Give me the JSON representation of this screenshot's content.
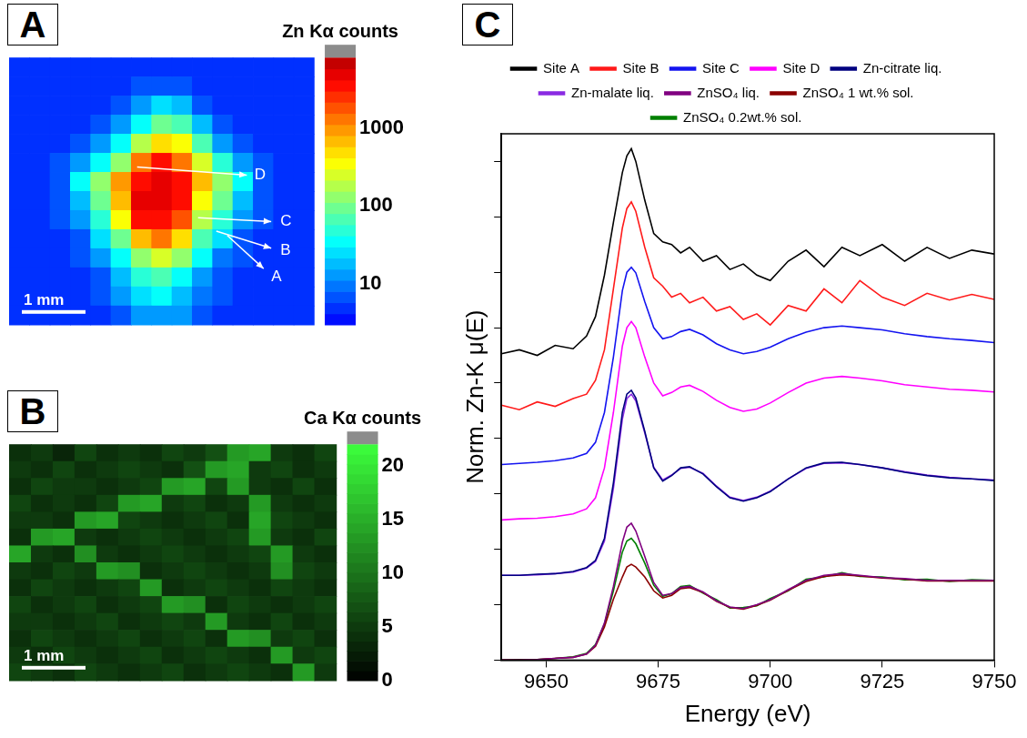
{
  "chart_data": [
    {
      "type": "heatmap",
      "panel_label": "A",
      "scale_bar": "1 mm",
      "annotations": [
        "D",
        "C",
        "B",
        "A"
      ],
      "colorbar": {
        "title": "Zn Kα counts",
        "log": true,
        "range": [
          3,
          8000
        ],
        "ticks": [
          10,
          100,
          1000
        ]
      },
      "cells": [
        [
          5,
          5,
          5,
          5,
          5,
          5,
          5,
          5,
          5,
          5,
          5,
          5,
          5,
          5,
          5
        ],
        [
          5,
          5,
          5,
          5,
          5,
          5,
          6,
          8,
          7,
          5,
          5,
          5,
          5,
          5,
          5
        ],
        [
          5,
          5,
          5,
          5,
          5,
          7,
          15,
          25,
          18,
          8,
          5,
          5,
          5,
          5,
          5
        ],
        [
          5,
          5,
          5,
          5,
          6,
          15,
          40,
          90,
          60,
          20,
          7,
          5,
          5,
          5,
          5
        ],
        [
          5,
          5,
          5,
          6,
          12,
          40,
          200,
          500,
          300,
          60,
          15,
          6,
          5,
          5,
          5
        ],
        [
          5,
          5,
          6,
          12,
          40,
          150,
          1500,
          3000,
          1500,
          250,
          50,
          12,
          6,
          5,
          5
        ],
        [
          5,
          5,
          8,
          30,
          120,
          900,
          4000,
          5000,
          3500,
          600,
          120,
          30,
          8,
          5,
          5
        ],
        [
          5,
          5,
          7,
          20,
          90,
          700,
          4500,
          5000,
          3000,
          400,
          90,
          20,
          7,
          5,
          5
        ],
        [
          5,
          5,
          6,
          12,
          50,
          300,
          3000,
          4000,
          1800,
          200,
          50,
          12,
          6,
          5,
          5
        ],
        [
          5,
          5,
          5,
          8,
          25,
          100,
          700,
          1200,
          500,
          80,
          25,
          8,
          5,
          5,
          5
        ],
        [
          5,
          5,
          5,
          6,
          12,
          40,
          150,
          250,
          120,
          30,
          10,
          6,
          5,
          5,
          5
        ],
        [
          5,
          5,
          5,
          5,
          8,
          20,
          50,
          70,
          40,
          15,
          7,
          5,
          5,
          5,
          5
        ],
        [
          5,
          5,
          5,
          5,
          6,
          12,
          25,
          30,
          20,
          10,
          6,
          5,
          5,
          5,
          5
        ],
        [
          5,
          5,
          5,
          5,
          5,
          8,
          15,
          15,
          12,
          7,
          5,
          5,
          5,
          5,
          5
        ]
      ]
    },
    {
      "type": "heatmap",
      "panel_label": "B",
      "scale_bar": "1 mm",
      "color": "#3cff3c",
      "colorbar": {
        "title": "Ca Kα counts",
        "log": false,
        "range": [
          0,
          22
        ],
        "ticks": [
          0,
          5,
          10,
          15,
          20
        ]
      },
      "cells": [
        [
          4,
          5,
          3,
          6,
          4,
          5,
          4,
          6,
          5,
          7,
          13,
          14,
          5,
          4,
          6
        ],
        [
          5,
          4,
          6,
          4,
          5,
          6,
          5,
          4,
          7,
          13,
          14,
          5,
          6,
          4,
          5
        ],
        [
          4,
          6,
          5,
          5,
          4,
          5,
          6,
          13,
          14,
          6,
          13,
          5,
          4,
          6,
          4
        ],
        [
          6,
          4,
          5,
          4,
          6,
          13,
          14,
          5,
          6,
          4,
          5,
          13,
          5,
          4,
          5
        ],
        [
          5,
          5,
          4,
          13,
          14,
          6,
          5,
          4,
          5,
          6,
          4,
          14,
          6,
          5,
          4
        ],
        [
          4,
          13,
          14,
          5,
          4,
          5,
          6,
          5,
          4,
          5,
          6,
          13,
          5,
          4,
          6
        ],
        [
          14,
          5,
          4,
          12,
          5,
          4,
          5,
          6,
          5,
          4,
          5,
          6,
          13,
          5,
          4
        ],
        [
          5,
          4,
          6,
          5,
          13,
          12,
          4,
          5,
          6,
          5,
          4,
          5,
          12,
          6,
          5
        ],
        [
          4,
          6,
          5,
          4,
          5,
          6,
          13,
          4,
          5,
          6,
          5,
          4,
          6,
          5,
          4
        ],
        [
          6,
          4,
          5,
          6,
          4,
          5,
          6,
          13,
          12,
          4,
          6,
          5,
          4,
          5,
          6
        ],
        [
          5,
          5,
          4,
          5,
          6,
          4,
          5,
          6,
          5,
          13,
          5,
          4,
          6,
          4,
          5
        ],
        [
          4,
          6,
          5,
          4,
          5,
          6,
          4,
          5,
          6,
          4,
          13,
          12,
          5,
          6,
          4
        ],
        [
          5,
          4,
          6,
          5,
          4,
          5,
          6,
          4,
          5,
          6,
          5,
          4,
          13,
          5,
          6
        ],
        [
          6,
          5,
          4,
          6,
          5,
          4,
          5,
          6,
          4,
          5,
          6,
          5,
          4,
          13,
          5
        ]
      ]
    },
    {
      "type": "line",
      "panel_label": "C",
      "x_label": "Energy (eV)",
      "y_label": "Norm. Zn-K μ(E)",
      "xlim": [
        9640,
        9750
      ],
      "xticks": [
        9650,
        9675,
        9700,
        9725,
        9750
      ],
      "ylim": [
        0,
        9.5
      ],
      "yticks": [
        0,
        1,
        2,
        3,
        4,
        5,
        6,
        7,
        8,
        9
      ],
      "tick_labels": "x",
      "grid": false,
      "legend": "top",
      "x": [
        9640,
        9644,
        9648,
        9652,
        9656,
        9659,
        9661,
        9663,
        9665,
        9667,
        9668,
        9669,
        9670,
        9672,
        9674,
        9676,
        9678,
        9680,
        9682,
        9685,
        9688,
        9691,
        9694,
        9697,
        9700,
        9704,
        9708,
        9712,
        9716,
        9720,
        9725,
        9730,
        9735,
        9740,
        9745,
        9750
      ],
      "series": [
        {
          "name": "Site A",
          "color": "#000000",
          "values": [
            5.53,
            5.6,
            5.5,
            5.68,
            5.62,
            5.85,
            6.2,
            6.95,
            7.9,
            8.8,
            9.1,
            9.23,
            9.0,
            8.3,
            7.7,
            7.55,
            7.5,
            7.35,
            7.45,
            7.2,
            7.3,
            7.05,
            7.15,
            6.95,
            6.85,
            7.2,
            7.4,
            7.1,
            7.45,
            7.3,
            7.5,
            7.2,
            7.45,
            7.25,
            7.4,
            7.33
          ]
        },
        {
          "name": "Site B",
          "color": "#ff1a1a",
          "values": [
            4.6,
            4.52,
            4.66,
            4.58,
            4.72,
            4.8,
            5.05,
            5.6,
            6.7,
            7.8,
            8.15,
            8.27,
            8.1,
            7.45,
            6.9,
            6.75,
            6.55,
            6.62,
            6.45,
            6.55,
            6.3,
            6.38,
            6.15,
            6.25,
            6.05,
            6.4,
            6.3,
            6.7,
            6.45,
            6.85,
            6.55,
            6.4,
            6.62,
            6.5,
            6.6,
            6.51
          ]
        },
        {
          "name": "Site C",
          "color": "#1414f0",
          "values": [
            3.53,
            3.55,
            3.57,
            3.6,
            3.65,
            3.73,
            3.93,
            4.47,
            5.47,
            6.67,
            7.0,
            7.09,
            6.99,
            6.47,
            6.0,
            5.8,
            5.84,
            5.93,
            5.97,
            5.87,
            5.71,
            5.6,
            5.53,
            5.57,
            5.65,
            5.8,
            5.92,
            6.0,
            6.03,
            6.0,
            5.96,
            5.89,
            5.84,
            5.8,
            5.77,
            5.73
          ]
        },
        {
          "name": "Site D",
          "color": "#ff00ff",
          "values": [
            2.53,
            2.55,
            2.56,
            2.59,
            2.64,
            2.73,
            2.93,
            3.47,
            4.47,
            5.67,
            6.0,
            6.11,
            6.0,
            5.47,
            5.0,
            4.77,
            4.83,
            4.93,
            4.96,
            4.85,
            4.69,
            4.56,
            4.49,
            4.53,
            4.64,
            4.83,
            5.0,
            5.09,
            5.12,
            5.09,
            5.04,
            4.97,
            4.93,
            4.89,
            4.87,
            4.84
          ]
        },
        {
          "name": "Zn-citrate liq.",
          "color": "#000080",
          "values": [
            1.53,
            1.53,
            1.55,
            1.56,
            1.6,
            1.67,
            1.8,
            2.2,
            3.2,
            4.47,
            4.8,
            4.87,
            4.73,
            4.13,
            3.47,
            3.23,
            3.33,
            3.47,
            3.49,
            3.36,
            3.13,
            2.93,
            2.87,
            2.93,
            3.04,
            3.27,
            3.47,
            3.56,
            3.57,
            3.53,
            3.47,
            3.39,
            3.33,
            3.29,
            3.27,
            3.24
          ]
        },
        {
          "name": "Zn-malate liq.",
          "color": "#8a2be2",
          "values": [
            1.53,
            1.53,
            1.54,
            1.56,
            1.59,
            1.66,
            1.78,
            2.15,
            3.1,
            4.35,
            4.72,
            4.8,
            4.68,
            4.1,
            3.48,
            3.25,
            3.34,
            3.46,
            3.48,
            3.37,
            3.14,
            2.94,
            2.88,
            2.94,
            3.05,
            3.27,
            3.46,
            3.55,
            3.56,
            3.53,
            3.47,
            3.4,
            3.34,
            3.3,
            3.27,
            3.25
          ]
        },
        {
          "name": "ZnSO₄ liq.",
          "color": "#800080",
          "values": [
            0,
            0,
            0.01,
            0.03,
            0.05,
            0.11,
            0.27,
            0.67,
            1.33,
            2.13,
            2.4,
            2.47,
            2.33,
            1.87,
            1.4,
            1.17,
            1.2,
            1.31,
            1.33,
            1.23,
            1.07,
            0.96,
            0.93,
            1.0,
            1.09,
            1.27,
            1.44,
            1.53,
            1.56,
            1.53,
            1.49,
            1.47,
            1.44,
            1.44,
            1.44,
            1.44
          ]
        },
        {
          "name": "ZnSO₄ 1 wt.% sol.",
          "color": "#8b0000",
          "values": [
            0,
            0,
            0.01,
            0.03,
            0.05,
            0.11,
            0.25,
            0.6,
            1.1,
            1.5,
            1.68,
            1.73,
            1.68,
            1.5,
            1.25,
            1.12,
            1.17,
            1.29,
            1.31,
            1.22,
            1.06,
            0.95,
            0.92,
            0.99,
            1.08,
            1.26,
            1.42,
            1.51,
            1.54,
            1.52,
            1.48,
            1.46,
            1.43,
            1.43,
            1.43,
            1.43
          ]
        },
        {
          "name": "ZnSO₄ 0.2wt.% sol.",
          "color": "#008000",
          "values": [
            0,
            0.01,
            0.01,
            0.03,
            0.06,
            0.12,
            0.28,
            0.65,
            1.25,
            1.95,
            2.15,
            2.2,
            2.1,
            1.75,
            1.35,
            1.15,
            1.2,
            1.33,
            1.35,
            1.21,
            1.09,
            0.94,
            0.95,
            0.98,
            1.11,
            1.25,
            1.46,
            1.5,
            1.58,
            1.51,
            1.5,
            1.45,
            1.46,
            1.42,
            1.45,
            1.44
          ]
        }
      ]
    }
  ]
}
